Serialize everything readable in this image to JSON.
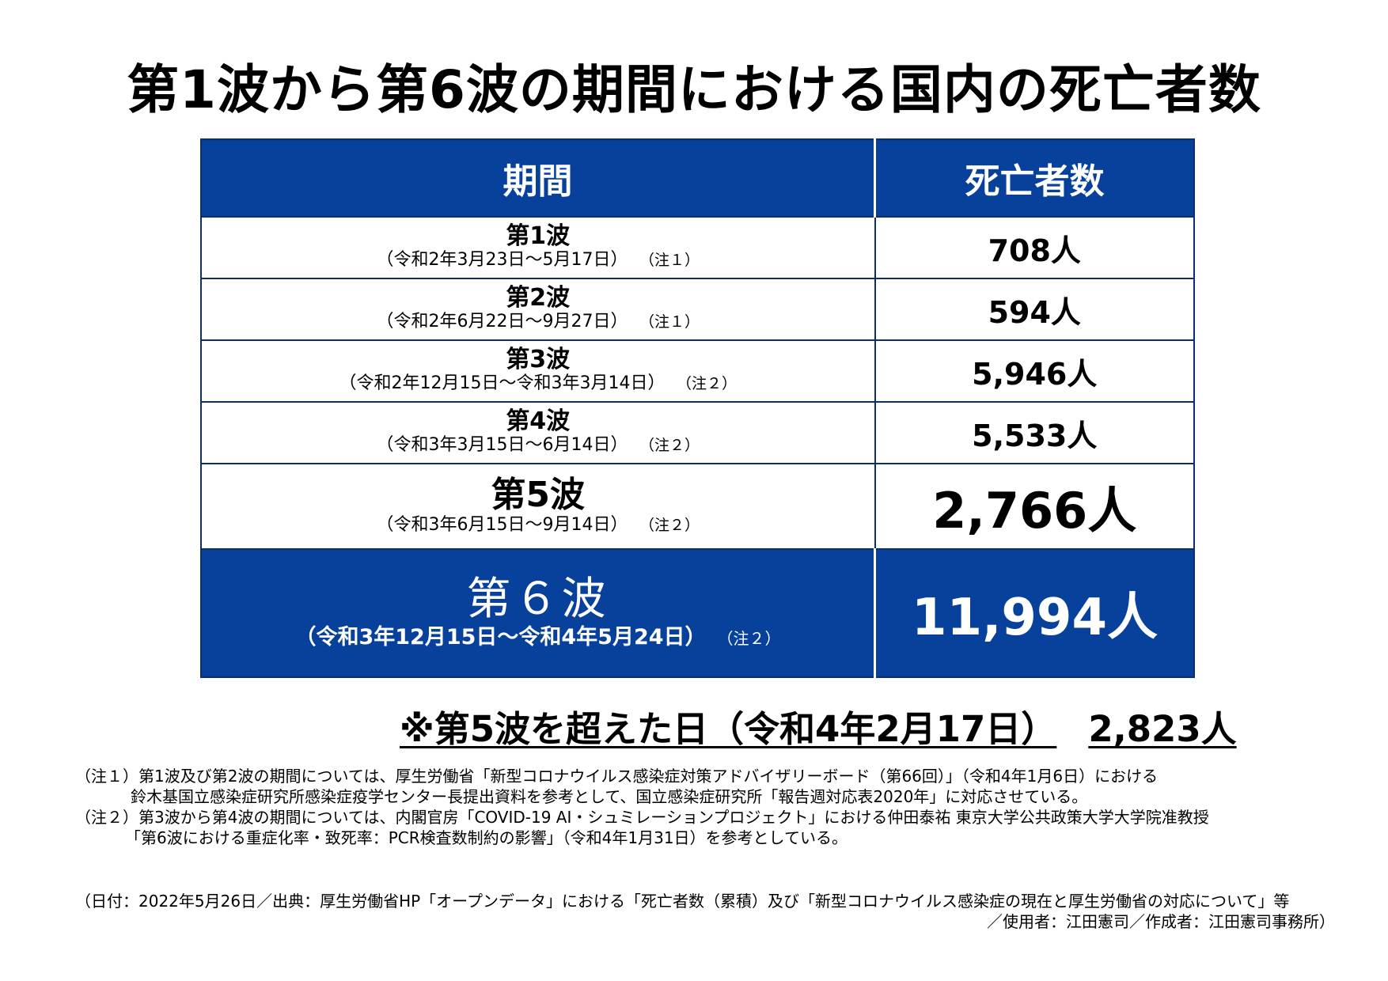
{
  "title": "第1波から第6波の期間における国内の死亡者数",
  "table": {
    "headers": {
      "period": "期間",
      "deaths": "死亡者数"
    },
    "rows": [
      {
        "wave": "第1波",
        "period": "（令和2年3月23日～5月17日）",
        "note": "（注１）",
        "deaths": "708人"
      },
      {
        "wave": "第2波",
        "period": "（令和2年6月22日～9月27日）",
        "note": "（注１）",
        "deaths": "594人"
      },
      {
        "wave": "第3波",
        "period": "（令和2年12月15日～令和3年3月14日）",
        "note": "（注２）",
        "deaths": "5,946人"
      },
      {
        "wave": "第4波",
        "period": "（令和3年3月15日～6月14日）",
        "note": "（注２）",
        "deaths": "5,533人"
      },
      {
        "wave": "第5波",
        "period": "（令和3年6月15日～9月14日）",
        "note": "（注２）",
        "deaths": "2,766人"
      },
      {
        "wave": "第６波",
        "period": "（令和3年12月15日～令和4年5月24日）",
        "note": "（注２）",
        "deaths": "11,994人"
      }
    ],
    "colors": {
      "header_bg": "#07419b",
      "highlight_bg": "#07419b"
    }
  },
  "exceed": {
    "label": "※第5波を超えた日（令和4年2月17日）",
    "value": "2,823人"
  },
  "notes": {
    "n1_line1": "（注１）第1波及び第2波の期間については、厚生労働省「新型コロナウイルス感染症対策アドバイザリーボード（第66回）」（令和4年1月6日）における",
    "n1_line2": "鈴木基国立感染症研究所感染症疫学センター長提出資料を参考として、国立感染症研究所「報告週対応表2020年」に対応させている。",
    "n2_line1": "（注２）第3波から第4波の期間については、内閣官房「COVID-19 AI・シュミレーションプロジェクト」における仲田泰祐 東京大学公共政策大学大学院准教授",
    "n2_line2": "「第6波における重症化率・致死率：PCR検査数制約の影響」（令和4年1月31日）を参考としている。"
  },
  "footer": {
    "line1": "（日付：2022年5月26日／出典：厚生労働省HP「オープンデータ」における「死亡者数（累積）及び「新型コロナウイルス感染症の現在と厚生労働省の対応について」等",
    "line2": "／使用者：江田憲司／作成者：江田憲司事務所）"
  }
}
